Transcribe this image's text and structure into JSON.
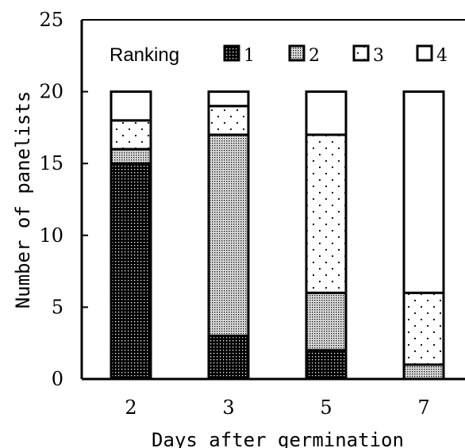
{
  "chart_data": {
    "type": "bar",
    "stacked": true,
    "title": "",
    "xlabel": "Days after germination",
    "ylabel": "Number of panelists",
    "ylim": [
      0,
      25
    ],
    "yticks": [
      0,
      5,
      10,
      15,
      20,
      25
    ],
    "categories": [
      "2",
      "3",
      "5",
      "7"
    ],
    "legend_title": "Ranking",
    "legend_position": "top",
    "series": [
      {
        "name": "1",
        "pattern": "dense-dots",
        "values": [
          15,
          3,
          2,
          0
        ]
      },
      {
        "name": "2",
        "pattern": "fine-stipple",
        "values": [
          1,
          14,
          4,
          1
        ]
      },
      {
        "name": "3",
        "pattern": "sparse-dots",
        "values": [
          2,
          2,
          11,
          5
        ]
      },
      {
        "name": "4",
        "pattern": "blank",
        "values": [
          2,
          1,
          3,
          14
        ]
      }
    ]
  }
}
